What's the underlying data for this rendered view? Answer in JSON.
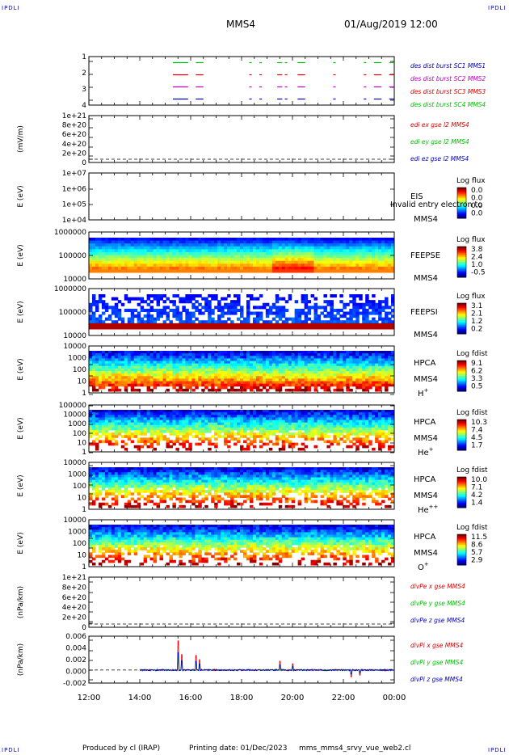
{
  "header": {
    "corner_label": "IPDLI",
    "spacecraft": "MMS4",
    "date": "01/Aug/2019 12:00"
  },
  "footer": {
    "produced_by": "Produced by cl (IRAP)",
    "printing_date": "Printing date: 01/Dec/2023",
    "filename": "mms_mms4_srvy_vue_web2.cl"
  },
  "colors": {
    "red": "#e00000",
    "green": "#00c000",
    "blue": "#0000c0",
    "magenta": "#c000c0"
  },
  "chart_data": [
    {
      "type": "line",
      "name": "burst-availability",
      "ylim": [
        0.5,
        4.5
      ],
      "y_ticks": [
        "1",
        "2",
        "3",
        "4"
      ],
      "legend": [
        {
          "text": "des dist burst SC1 MMS1",
          "color": "#0000c0"
        },
        {
          "text": "des dist burst SC2 MMS2",
          "color": "#c000c0"
        },
        {
          "text": "des dist burst SC3 MMS3",
          "color": "#e00000"
        },
        {
          "text": "des dist burst SC4 MMS4",
          "color": "#00c000"
        }
      ],
      "segments_hours": [
        [
          15.3,
          15.9
        ],
        [
          16.2,
          16.5
        ],
        [
          18.3,
          18.4
        ],
        [
          18.7,
          18.8
        ],
        [
          19.4,
          19.6
        ],
        [
          19.7,
          19.8
        ],
        [
          20.2,
          20.5
        ],
        [
          21.6,
          21.7
        ],
        [
          22.8,
          22.9
        ],
        [
          23.2,
          23.5
        ],
        [
          23.8,
          24.0
        ]
      ]
    },
    {
      "type": "line",
      "name": "edi-e-field",
      "ylabel": "(mV/m)",
      "y_ticks": [
        "1e+21",
        "8e+20",
        "6e+20",
        "4e+20",
        "2e+20",
        "0"
      ],
      "legend": [
        {
          "text": "edi ex gse l2 MMS4",
          "color": "#e00000"
        },
        {
          "text": "edi ey gse l2 MMS4",
          "color": "#00c000"
        },
        {
          "text": "edi ez gse l2 MMS4",
          "color": "#0000c0"
        }
      ]
    },
    {
      "type": "heatmap",
      "name": "eis",
      "ylabel": "E (eV)",
      "y_ticks": [
        "1e+07",
        "1e+06",
        "1e+05",
        "1e+04"
      ],
      "instrument": "EIS",
      "sub": "MMS4",
      "overlay_text": "Invalid entry electron to",
      "cbar_title": "Log flux",
      "cbar_labels": [
        "0.0",
        "0.0",
        "0.0",
        "0.0"
      ]
    },
    {
      "type": "heatmap",
      "name": "feepse",
      "ylabel": "E (eV)",
      "y_ticks": [
        "1000000",
        "100000",
        "10000"
      ],
      "instrument": "FEEPSE",
      "sub": "MMS4",
      "cbar_title": "Log flux",
      "cbar_labels": [
        "3.8",
        "2.4",
        "1.0",
        "-0.5"
      ]
    },
    {
      "type": "heatmap",
      "name": "feepsi",
      "ylabel": "E (eV)",
      "y_ticks": [
        "1000000",
        "100000",
        "10000"
      ],
      "instrument": "FEEPSI",
      "sub": "MMS4",
      "cbar_title": "Log flux",
      "cbar_labels": [
        "3.1",
        "2.1",
        "1.2",
        "0.2"
      ]
    },
    {
      "type": "heatmap",
      "name": "hpca-h",
      "ylabel": "E (eV)",
      "y_ticks": [
        "10000",
        "1000",
        "100",
        "10",
        "1"
      ],
      "instrument": "HPCA",
      "sub": "MMS4",
      "species": "H",
      "species_sup": "+",
      "cbar_title": "Log fdist",
      "cbar_labels": [
        "9.1",
        "6.2",
        "3.3",
        "0.5"
      ]
    },
    {
      "type": "heatmap",
      "name": "hpca-he",
      "ylabel": "E (eV)",
      "y_ticks": [
        "100000",
        "10000",
        "1000",
        "100",
        "10",
        "1"
      ],
      "instrument": "HPCA",
      "sub": "MMS4",
      "species": "He",
      "species_sup": "+",
      "cbar_title": "Log fdist",
      "cbar_labels": [
        "10.3",
        "7.4",
        "4.5",
        "1.7"
      ]
    },
    {
      "type": "heatmap",
      "name": "hpca-hepp",
      "ylabel": "E (eV)",
      "y_ticks": [
        "10000",
        "1000",
        "100",
        "10",
        "1"
      ],
      "instrument": "HPCA",
      "sub": "MMS4",
      "species": "He",
      "species_sup": "++",
      "cbar_title": "Log fdist",
      "cbar_labels": [
        "10.0",
        "7.1",
        "4.2",
        "1.4"
      ]
    },
    {
      "type": "heatmap",
      "name": "hpca-o",
      "ylabel": "E (eV)",
      "y_ticks": [
        "10000",
        "1000",
        "100",
        "10",
        "1"
      ],
      "instrument": "HPCA",
      "sub": "MMS4",
      "species": "O",
      "species_sup": "+",
      "cbar_title": "Log fdist",
      "cbar_labels": [
        "11.5",
        "8.6",
        "5.7",
        "2.9"
      ]
    },
    {
      "type": "line",
      "name": "divpe",
      "ylabel": "(nPa/km)",
      "y_ticks": [
        "1e+21",
        "8e+20",
        "6e+20",
        "4e+20",
        "2e+20",
        "0"
      ],
      "legend": [
        {
          "text": "divPe x gse MMS4",
          "color": "#e00000"
        },
        {
          "text": "divPe y gse MMS4",
          "color": "#00c000"
        },
        {
          "text": "divPe z gse MMS4",
          "color": "#0000c0"
        }
      ]
    },
    {
      "type": "line",
      "name": "divpi",
      "ylabel": "(nPa/km)",
      "ylim": [
        -0.0025,
        0.0065
      ],
      "y_ticks": [
        "0.006",
        "0.004",
        "0.002",
        "0.000",
        "-0.002"
      ],
      "legend": [
        {
          "text": "divPi x gse MMS4",
          "color": "#e00000"
        },
        {
          "text": "divPi y gse MMS4",
          "color": "#00c000"
        },
        {
          "text": "divPi z gse MMS4",
          "color": "#0000c0"
        }
      ],
      "data_start_hour": 14.0,
      "spikes_hours": [
        [
          15.5,
          0.0056
        ],
        [
          15.65,
          0.003
        ],
        [
          16.2,
          0.0028
        ],
        [
          16.35,
          0.002
        ],
        [
          19.5,
          0.0017
        ],
        [
          20.0,
          0.0012
        ],
        [
          22.3,
          -0.0013
        ],
        [
          22.65,
          -0.001
        ]
      ]
    }
  ],
  "x_axis": {
    "tick_labels": [
      "12:00",
      "14:00",
      "16:00",
      "18:00",
      "20:00",
      "22:00",
      "00:00"
    ],
    "range_hours": [
      12,
      24
    ]
  }
}
